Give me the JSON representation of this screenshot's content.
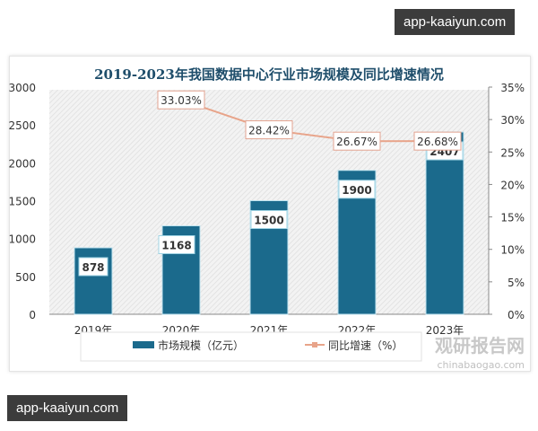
{
  "watermarks": [
    "app-kaaiyun.com",
    "app-kaaiyun.com"
  ],
  "logo": {
    "name": "观研报告网",
    "url": "chinabaogao.com"
  },
  "chart_data": {
    "type": "bar",
    "title": "2019-2023年我国数据中心行业市场规模及同比增速情况",
    "categories": [
      "2019年",
      "2020年",
      "2021年",
      "2022年",
      "2023年"
    ],
    "series": [
      {
        "name": "市场规模（亿元）",
        "type": "bar",
        "axis": "left",
        "values": [
          878,
          1168,
          1500,
          1900,
          2407
        ],
        "labels": [
          "878",
          "1168",
          "1500",
          "1900",
          "2407"
        ],
        "color": "#1b6a8c"
      },
      {
        "name": "同比增速（%）",
        "type": "line",
        "axis": "right",
        "values": [
          null,
          33.03,
          28.42,
          26.67,
          26.68
        ],
        "labels": [
          "",
          "33.03%",
          "28.42%",
          "26.67%",
          "26.68%"
        ],
        "color": "#e8a48a"
      }
    ],
    "ylim": [
      0,
      3000
    ],
    "yticks": [
      "0",
      "500",
      "1000",
      "1500",
      "2000",
      "2500",
      "3000"
    ],
    "y2lim": [
      0,
      35
    ],
    "y2ticks": [
      "0%",
      "5%",
      "10%",
      "15%",
      "20%",
      "25%",
      "30%",
      "35%"
    ],
    "legend": "bottom",
    "grid": false
  }
}
